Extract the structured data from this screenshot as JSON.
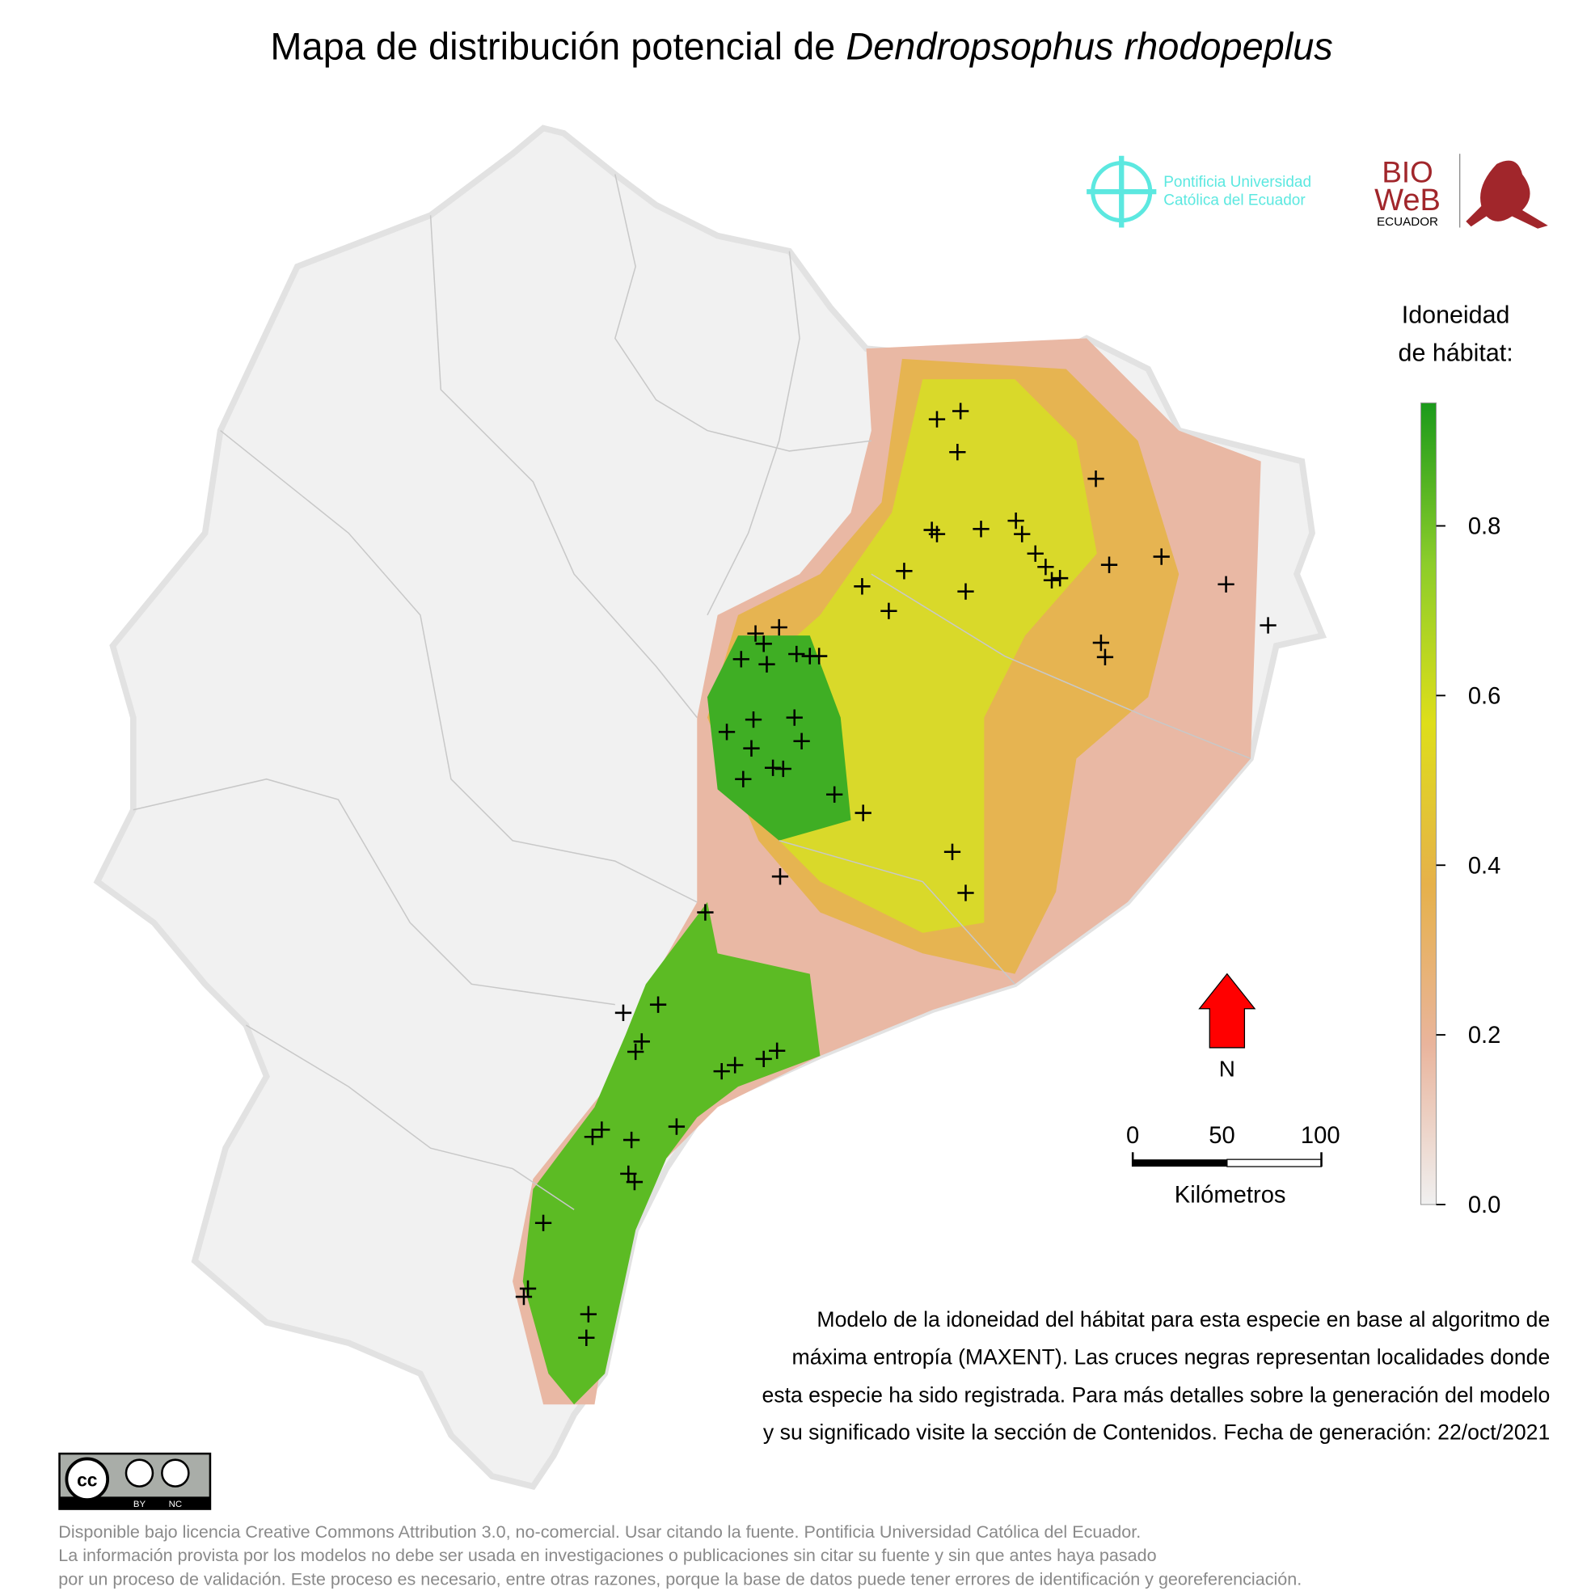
{
  "title": {
    "prefix": "Mapa de distribución potencial de",
    "species": "Dendropsophus rhodopeplus"
  },
  "logos": {
    "puce": [
      "Pontificia Universidad",
      "Católica del Ecuador"
    ],
    "bioweb": [
      "BIO",
      "WeB",
      "ECUADOR"
    ]
  },
  "legend": {
    "title": [
      "Idoneidad",
      "de hábitat:"
    ],
    "lim": [
      0,
      0.945
    ],
    "ticks": [
      {
        "value": 0,
        "label": "0.0"
      },
      0.2,
      0.4,
      0.6,
      0.8
    ],
    "colors": [
      "#f0f0f0",
      "#e9b49c",
      "#e6b14a",
      "#dede1a",
      "#8ccd2a",
      "#1b9a1b"
    ]
  },
  "north": "N",
  "scale_bar": {
    "ticks": [
      0,
      50,
      100
    ],
    "unit": "Kilómetros"
  },
  "description": [
    "Modelo de la idoneidad del hábitat para esta especie en base al algoritmo de",
    "máxima entropía (MAXENT). Las cruces negras representan localidades donde",
    "esta especie ha sido registrada. Para más detalles sobre la generación del modelo",
    "y su significado visite la sección de Contenidos. Fecha de generación: 22/oct/2021"
  ],
  "license_badge": [
    "BY",
    "NC"
  ],
  "license": [
    "Disponible bajo licencia Creative Commons Attribution 3.0, no-comercial. Usar citando la fuente. Pontificia Universidad Católica del Ecuador.",
    "La información provista por los modelos no debe ser usada en investigaciones o publicaciones sin citar su fuente y sin que antes haya pasado",
    "por un proceso de validación. Este proceso es necesario, entre otras razones, porque la base de datos puede tener errores de identificación y georeferenciación."
  ]
}
